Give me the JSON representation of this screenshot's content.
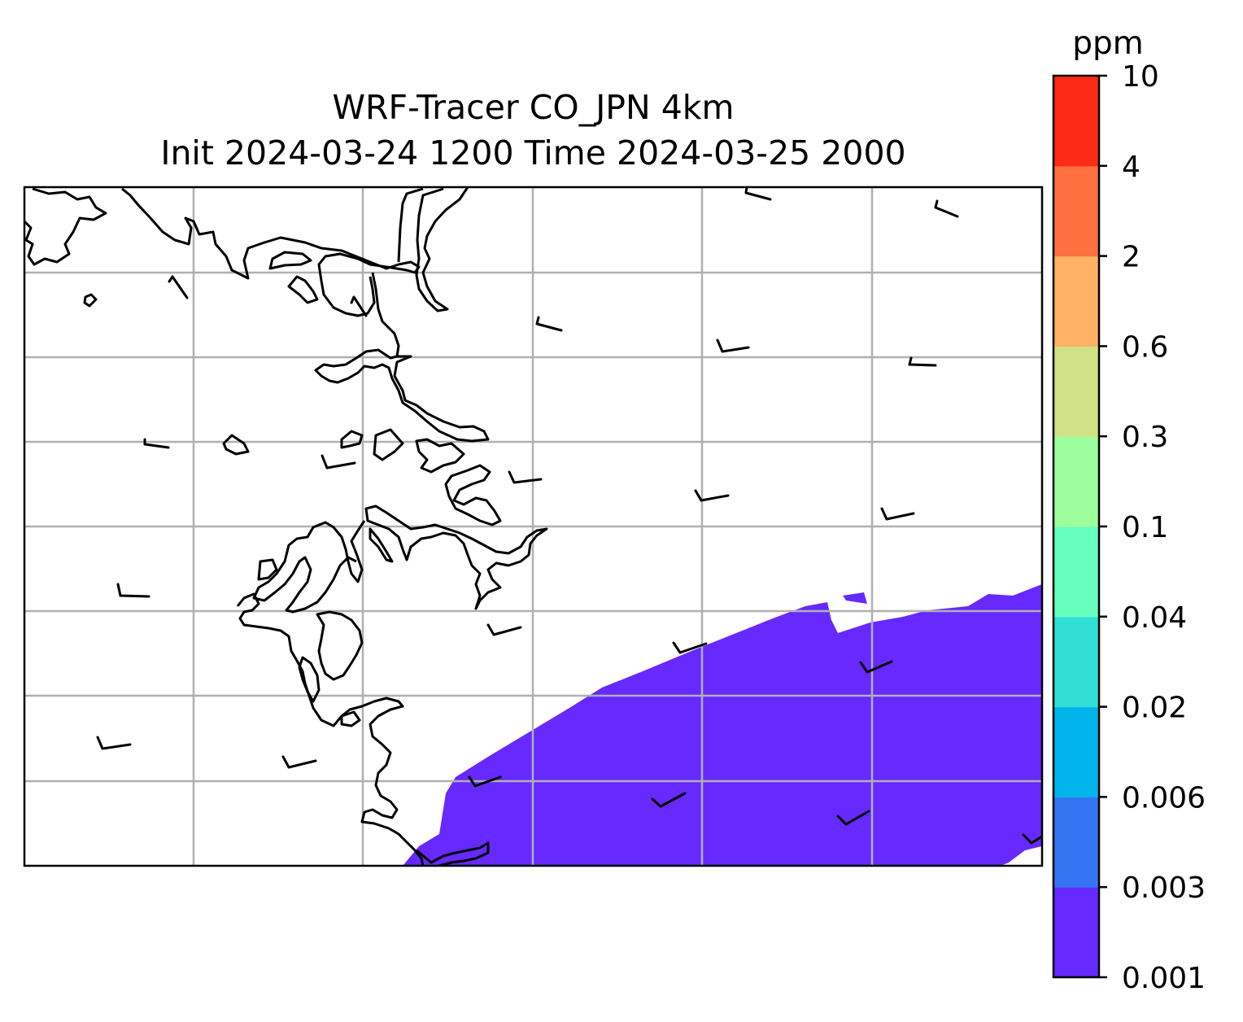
{
  "title": {
    "line1": "WRF-Tracer CO_JPN 4km",
    "line2": "Init 2024-03-24 1200 Time 2024-03-25 2000"
  },
  "colorbar": {
    "unit": "ppm",
    "levels": [
      "0.001",
      "0.003",
      "0.006",
      "0.02",
      "0.04",
      "0.1",
      "0.3",
      "0.6",
      "2",
      "4",
      "10"
    ],
    "colors": [
      "#6629ff",
      "#3475f4",
      "#00b4ec",
      "#30e0d6",
      "#66ffbe",
      "#9cff9c",
      "#d0e285",
      "#ffb263",
      "#ff7040",
      "#ff2a16"
    ]
  },
  "map": {
    "field_color": "#6629ff",
    "coastline_color": "#000000",
    "gridline_color": "#b0b0b0",
    "gridlines": true
  }
}
